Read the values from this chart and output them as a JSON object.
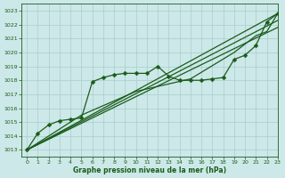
{
  "title": "Graphe pression niveau de la mer (hPa)",
  "bg_color": "#cce8e8",
  "grid_color": "#aacccc",
  "line_color": "#1a5c1a",
  "xlim": [
    -0.5,
    23
  ],
  "ylim": [
    1012.5,
    1023.5
  ],
  "xticks": [
    0,
    1,
    2,
    3,
    4,
    5,
    6,
    7,
    8,
    9,
    10,
    11,
    12,
    13,
    14,
    15,
    16,
    17,
    18,
    19,
    20,
    21,
    22,
    23
  ],
  "yticks": [
    1013,
    1014,
    1015,
    1016,
    1017,
    1018,
    1019,
    1020,
    1021,
    1022,
    1023
  ],
  "series": [
    {
      "x": [
        0,
        1,
        2,
        3,
        4,
        5,
        6,
        7,
        8,
        9,
        10,
        11,
        12,
        13,
        14,
        15,
        16,
        17,
        18,
        19,
        20,
        21,
        22,
        23
      ],
      "y": [
        1013.0,
        1014.2,
        1014.8,
        1015.1,
        1015.2,
        1015.3,
        1017.9,
        1018.2,
        1018.4,
        1018.5,
        1018.5,
        1018.5,
        1019.0,
        1018.3,
        1018.0,
        1018.0,
        1018.0,
        1018.1,
        1018.2,
        1019.5,
        1019.8,
        1020.5,
        1022.2,
        1022.8
      ],
      "marker": "D",
      "markersize": 2.5,
      "lw": 0.9
    },
    {
      "x": [
        0,
        23
      ],
      "y": [
        1013.0,
        1022.8
      ],
      "marker": null,
      "markersize": 0,
      "lw": 0.9
    },
    {
      "x": [
        0,
        23
      ],
      "y": [
        1013.0,
        1022.3
      ],
      "marker": null,
      "markersize": 0,
      "lw": 0.9
    },
    {
      "x": [
        0,
        23
      ],
      "y": [
        1013.0,
        1021.8
      ],
      "marker": null,
      "markersize": 0,
      "lw": 0.9
    },
    {
      "x": [
        0,
        5,
        10,
        15,
        19,
        21,
        22,
        23
      ],
      "y": [
        1013.0,
        1015.5,
        1017.2,
        1018.1,
        1020.0,
        1021.2,
        1021.5,
        1022.8
      ],
      "marker": null,
      "markersize": 0,
      "lw": 0.9
    }
  ]
}
